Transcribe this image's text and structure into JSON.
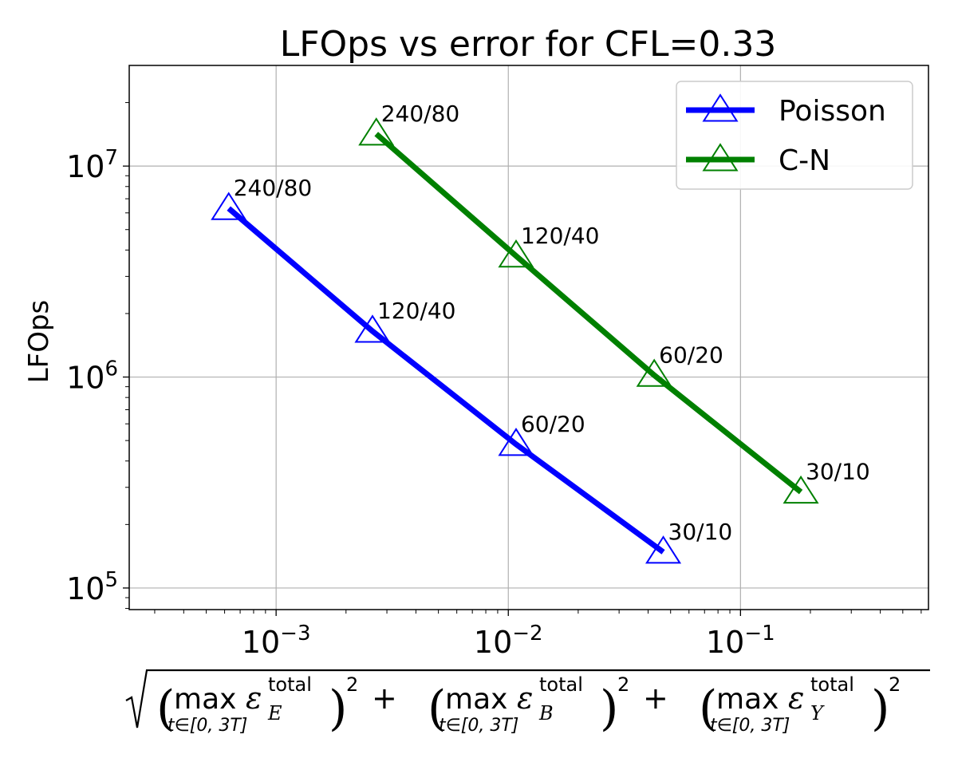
{
  "chart_data": {
    "type": "line",
    "title": "LFOps vs error for CFL=0.33",
    "ylabel": "LFOps",
    "xlabel": "sqrt( (max_{t∈[0,3T]} ε_E^total)^2 + (max_{t∈[0,3T]} ε_B^total)^2 + (max_{t∈[0,3T]} ε_Y^total)^2 )",
    "xlabel_parts": {
      "max_word": "max",
      "subscript": "t∈[0, 3T]",
      "symbol": "ε",
      "superscript": "total",
      "terms": [
        "E",
        "B",
        "Y"
      ],
      "power": "2",
      "plus": "+"
    },
    "xscale": "log",
    "yscale": "log",
    "xlim": [
      0.000233,
      0.645
    ],
    "ylim": [
      79000,
      30000000
    ],
    "grid": true,
    "legend_position": "top-right",
    "x_ticks": [
      {
        "value": 0.001,
        "base": "10",
        "exp": "−3"
      },
      {
        "value": 0.01,
        "base": "10",
        "exp": "−2"
      },
      {
        "value": 0.1,
        "base": "10",
        "exp": "−1"
      }
    ],
    "y_ticks": [
      {
        "value": 100000,
        "base": "10",
        "exp": "5"
      },
      {
        "value": 1000000,
        "base": "10",
        "exp": "6"
      },
      {
        "value": 10000000,
        "base": "10",
        "exp": "7"
      }
    ],
    "series": [
      {
        "name": "Poisson",
        "color": "#0000ff",
        "marker": "triangle-open",
        "points": [
          {
            "x": 0.000625,
            "y": 6300000,
            "label": "240/80"
          },
          {
            "x": 0.0026,
            "y": 1650000,
            "label": "120/40"
          },
          {
            "x": 0.0108,
            "y": 480000,
            "label": "60/20"
          },
          {
            "x": 0.0465,
            "y": 148000,
            "label": "30/10"
          }
        ]
      },
      {
        "name": "C-N",
        "color": "#008000",
        "marker": "triangle-open",
        "points": [
          {
            "x": 0.0027,
            "y": 14200000,
            "label": "240/80"
          },
          {
            "x": 0.0108,
            "y": 3750000,
            "label": "120/40"
          },
          {
            "x": 0.0425,
            "y": 1020000,
            "label": "60/20"
          },
          {
            "x": 0.182,
            "y": 285000,
            "label": "30/10"
          }
        ]
      }
    ]
  }
}
